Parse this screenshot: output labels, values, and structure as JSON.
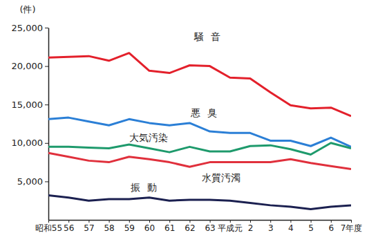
{
  "chart_data": {
    "type": "line",
    "y_label": "(件)",
    "categories": [
      "昭和55",
      "56",
      "57",
      "58",
      "59",
      "60",
      "61",
      "62",
      "63",
      "平成元",
      "2",
      "3",
      "4",
      "5",
      "6",
      "7年度"
    ],
    "series": [
      {
        "name": "騒音",
        "color": "#e3202b",
        "values": [
          21100,
          21200,
          21300,
          20700,
          21700,
          19400,
          19100,
          20100,
          20000,
          18500,
          18400,
          16600,
          14900,
          14500,
          14600,
          13500
        ]
      },
      {
        "name": "悪臭",
        "color": "#2b7fd6",
        "values": [
          13100,
          13300,
          12800,
          12300,
          13100,
          12600,
          12300,
          12600,
          11500,
          11300,
          11300,
          10300,
          10300,
          9600,
          10700,
          9500
        ]
      },
      {
        "name": "大気汚染",
        "color": "#1e9a6c",
        "values": [
          9500,
          9500,
          9400,
          9300,
          9800,
          9300,
          8800,
          9500,
          8900,
          8900,
          9600,
          9700,
          9200,
          8500,
          10000,
          9300
        ]
      },
      {
        "name": "水質汚濁",
        "color": "#e0303c",
        "values": [
          8700,
          8200,
          7700,
          7500,
          8200,
          7900,
          7500,
          6900,
          7500,
          7500,
          7500,
          7500,
          7900,
          7400,
          7000,
          6600
        ]
      },
      {
        "name": "振動",
        "color": "#1b2050",
        "values": [
          3200,
          2900,
          2500,
          2700,
          2700,
          2900,
          2500,
          2600,
          2600,
          2500,
          2200,
          1900,
          1700,
          1400,
          1700,
          1900
        ]
      }
    ],
    "ylim": [
      0,
      25000
    ],
    "yticks": [
      {
        "value": 5000,
        "label": "5,000"
      },
      {
        "value": 10000,
        "label": "10,000"
      },
      {
        "value": 15000,
        "label": "15,000"
      },
      {
        "value": 20000,
        "label": "20,000"
      },
      {
        "value": 25000,
        "label": "25,000"
      }
    ],
    "grid": false
  }
}
